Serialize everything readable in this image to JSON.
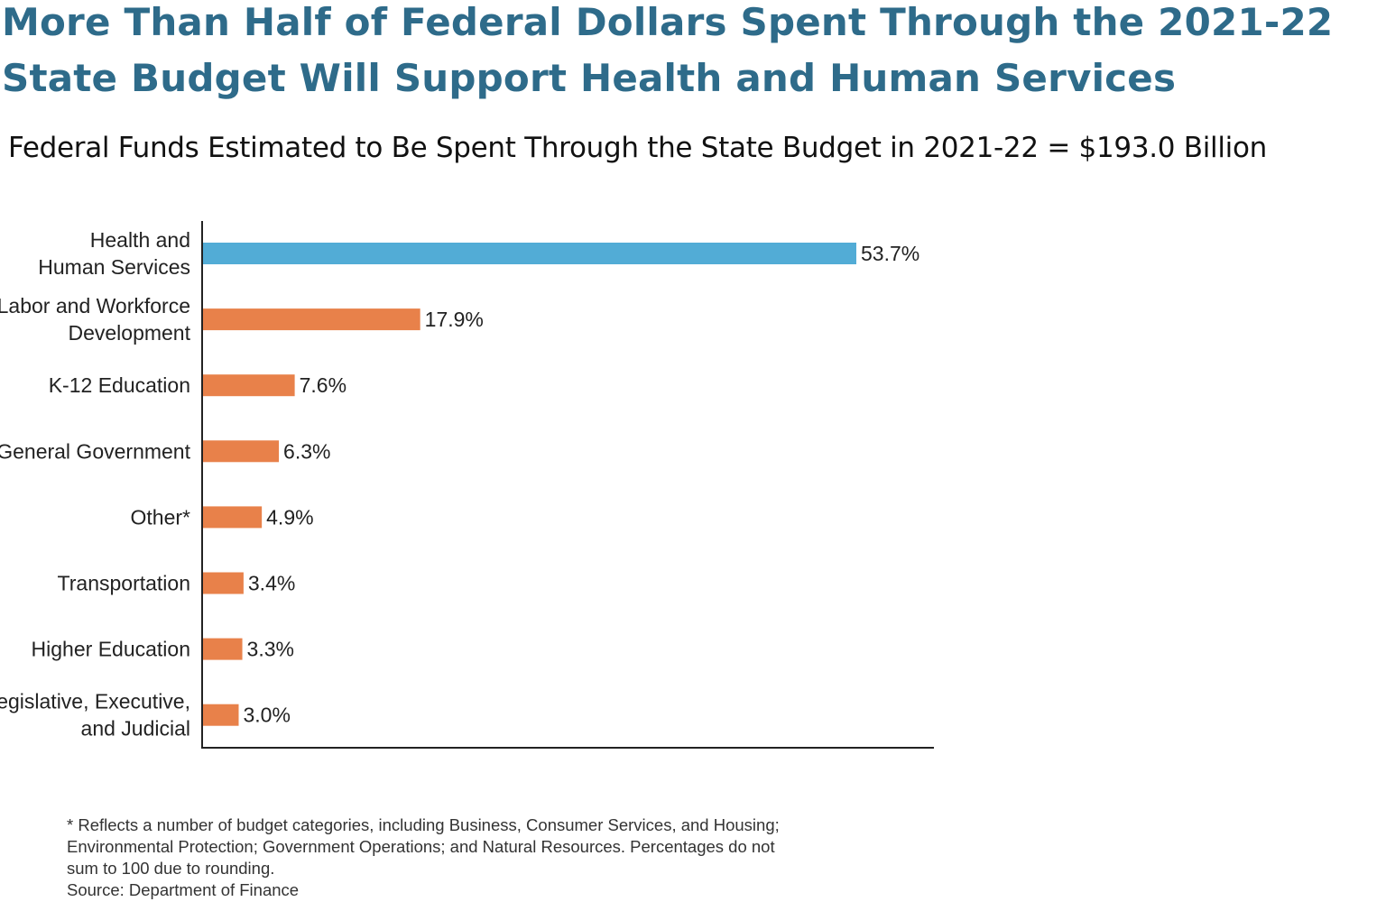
{
  "title": "More Than Half of Federal Dollars Spent Through the 2021-22 State Budget Will Support Health and Human Services",
  "chart_data": {
    "type": "bar",
    "orientation": "horizontal",
    "title": "Federal Funds Estimated to Be Spent Through the State Budget in 2021-22 = $193.0 Billion",
    "unit": "%",
    "categories": [
      [
        "Health and",
        "Human Services"
      ],
      [
        "Labor and Workforce",
        "Development"
      ],
      [
        "K-12 Education"
      ],
      [
        "General Government"
      ],
      [
        "Other*"
      ],
      [
        "Transportation"
      ],
      [
        "Higher Education"
      ],
      [
        "Legislative, Executive,",
        "and Judicial"
      ]
    ],
    "values": [
      53.7,
      17.9,
      7.6,
      6.3,
      4.9,
      3.4,
      3.3,
      3.0
    ],
    "data_labels": [
      "53.7%",
      "17.9%",
      "7.6%",
      "6.3%",
      "4.9%",
      "3.4%",
      "3.3%",
      "3.0%"
    ],
    "colors": [
      "#52acd6",
      "#e8814a",
      "#e8814a",
      "#e8814a",
      "#e8814a",
      "#e8814a",
      "#e8814a",
      "#e8814a"
    ],
    "xlim": [
      0,
      60
    ],
    "grid": false,
    "legend": "none"
  },
  "footnote": [
    "* Reflects a number of budget categories, including Business, Consumer Services, and Housing;",
    "Environmental Protection; Government Operations; and Natural Resources. Percentages do not",
    "sum to 100 due to rounding.",
    "Source: Department of Finance"
  ]
}
